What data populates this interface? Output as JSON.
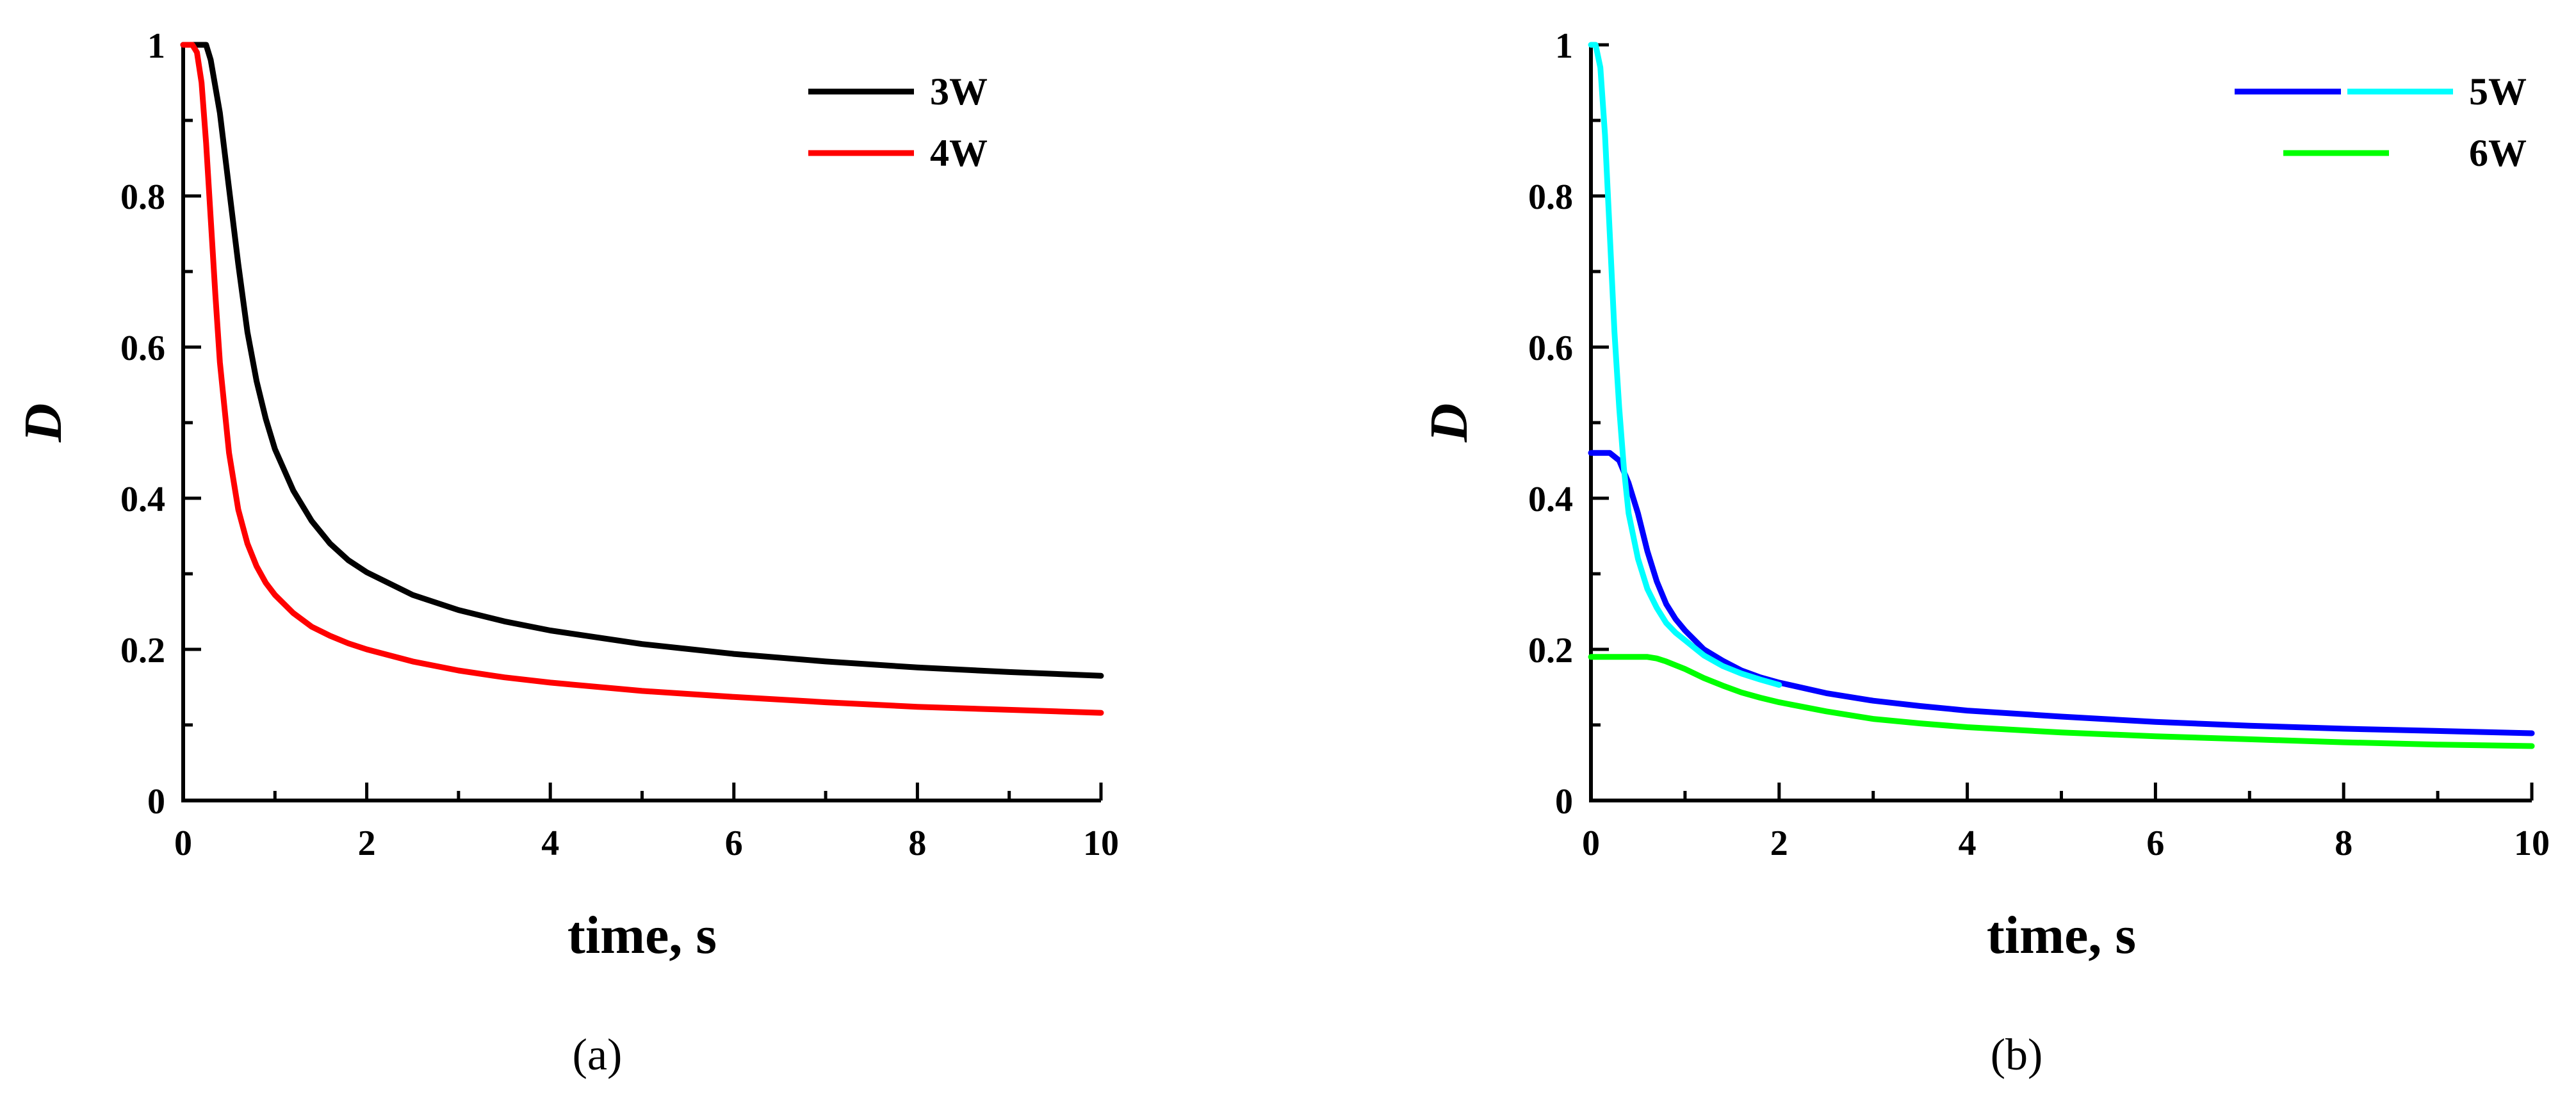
{
  "chart_data": [
    {
      "type": "line",
      "panel_label": "(a)",
      "xlabel": "time, s",
      "ylabel": "D",
      "xlim": [
        0,
        10
      ],
      "ylim": [
        0,
        1
      ],
      "x_ticks": [
        "0",
        "2",
        "4",
        "6",
        "8",
        "10"
      ],
      "y_ticks": [
        "0",
        "0.2",
        "0.4",
        "0.6",
        "0.8",
        "1"
      ],
      "grid": false,
      "legend_position": "top-right",
      "series": [
        {
          "name": "3W",
          "color": "#000000",
          "points": [
            [
              0,
              1
            ],
            [
              0.1,
              1
            ],
            [
              0.2,
              1
            ],
            [
              0.25,
              1
            ],
            [
              0.3,
              0.98
            ],
            [
              0.4,
              0.91
            ],
            [
              0.5,
              0.81
            ],
            [
              0.6,
              0.71
            ],
            [
              0.7,
              0.62
            ],
            [
              0.8,
              0.555
            ],
            [
              0.9,
              0.505
            ],
            [
              1.0,
              0.465
            ],
            [
              1.2,
              0.41
            ],
            [
              1.4,
              0.37
            ],
            [
              1.6,
              0.34
            ],
            [
              1.8,
              0.318
            ],
            [
              2.0,
              0.302
            ],
            [
              2.5,
              0.272
            ],
            [
              3.0,
              0.252
            ],
            [
              3.5,
              0.237
            ],
            [
              4.0,
              0.225
            ],
            [
              5.0,
              0.207
            ],
            [
              6.0,
              0.194
            ],
            [
              7.0,
              0.184
            ],
            [
              8.0,
              0.176
            ],
            [
              9.0,
              0.17
            ],
            [
              10.0,
              0.165
            ]
          ]
        },
        {
          "name": "4W",
          "color": "#ff0000",
          "points": [
            [
              0,
              1
            ],
            [
              0.1,
              1
            ],
            [
              0.15,
              0.99
            ],
            [
              0.2,
              0.95
            ],
            [
              0.25,
              0.87
            ],
            [
              0.3,
              0.77
            ],
            [
              0.35,
              0.67
            ],
            [
              0.4,
              0.58
            ],
            [
              0.5,
              0.46
            ],
            [
              0.6,
              0.385
            ],
            [
              0.7,
              0.34
            ],
            [
              0.8,
              0.31
            ],
            [
              0.9,
              0.288
            ],
            [
              1.0,
              0.272
            ],
            [
              1.2,
              0.248
            ],
            [
              1.4,
              0.23
            ],
            [
              1.6,
              0.218
            ],
            [
              1.8,
              0.208
            ],
            [
              2.0,
              0.2
            ],
            [
              2.5,
              0.184
            ],
            [
              3.0,
              0.172
            ],
            [
              3.5,
              0.163
            ],
            [
              4.0,
              0.156
            ],
            [
              5.0,
              0.145
            ],
            [
              6.0,
              0.137
            ],
            [
              7.0,
              0.13
            ],
            [
              8.0,
              0.124
            ],
            [
              9.0,
              0.12
            ],
            [
              10.0,
              0.116
            ]
          ]
        }
      ]
    },
    {
      "type": "line",
      "panel_label": "(b)",
      "xlabel": "time, s",
      "ylabel": "D",
      "xlim": [
        0,
        10
      ],
      "ylim": [
        0,
        1
      ],
      "x_ticks": [
        "0",
        "2",
        "4",
        "6",
        "8",
        "10"
      ],
      "y_ticks": [
        "0",
        "0.2",
        "0.4",
        "0.6",
        "0.8",
        "1"
      ],
      "grid": false,
      "legend_position": "top-right",
      "series": [
        {
          "name": "5W",
          "segments": [
            {
              "color": "#0000ff",
              "points": [
                [
                  0,
                  0.46
                ],
                [
                  0.1,
                  0.46
                ],
                [
                  0.2,
                  0.46
                ],
                [
                  0.3,
                  0.45
                ],
                [
                  0.4,
                  0.42
                ],
                [
                  0.5,
                  0.38
                ],
                [
                  0.6,
                  0.33
                ],
                [
                  0.7,
                  0.29
                ],
                [
                  0.8,
                  0.26
                ],
                [
                  0.9,
                  0.24
                ],
                [
                  1.0,
                  0.225
                ],
                [
                  1.2,
                  0.2
                ],
                [
                  1.4,
                  0.185
                ],
                [
                  1.6,
                  0.172
                ],
                [
                  1.8,
                  0.163
                ],
                [
                  2.0,
                  0.156
                ],
                [
                  2.5,
                  0.142
                ],
                [
                  3.0,
                  0.132
                ],
                [
                  3.5,
                  0.125
                ],
                [
                  4.0,
                  0.119
                ],
                [
                  5.0,
                  0.111
                ],
                [
                  6.0,
                  0.104
                ],
                [
                  7.0,
                  0.099
                ],
                [
                  8.0,
                  0.095
                ],
                [
                  9.0,
                  0.092
                ],
                [
                  10.0,
                  0.089
                ]
              ]
            },
            {
              "color": "#00ffff",
              "points": [
                [
                  0,
                  1
                ],
                [
                  0.05,
                  1
                ],
                [
                  0.1,
                  0.97
                ],
                [
                  0.15,
                  0.88
                ],
                [
                  0.2,
                  0.75
                ],
                [
                  0.25,
                  0.62
                ],
                [
                  0.3,
                  0.52
                ],
                [
                  0.35,
                  0.44
                ],
                [
                  0.4,
                  0.38
                ],
                [
                  0.5,
                  0.32
                ],
                [
                  0.6,
                  0.28
                ],
                [
                  0.7,
                  0.255
                ],
                [
                  0.8,
                  0.235
                ],
                [
                  0.9,
                  0.222
                ],
                [
                  1.0,
                  0.212
                ],
                [
                  1.2,
                  0.192
                ],
                [
                  1.4,
                  0.178
                ],
                [
                  1.6,
                  0.168
                ],
                [
                  1.8,
                  0.16
                ],
                [
                  2.0,
                  0.153
                ]
              ]
            }
          ]
        },
        {
          "name": "6W",
          "color": "#00ff00",
          "points": [
            [
              0,
              0.19
            ],
            [
              0.2,
              0.19
            ],
            [
              0.4,
              0.19
            ],
            [
              0.6,
              0.19
            ],
            [
              0.7,
              0.188
            ],
            [
              0.8,
              0.184
            ],
            [
              1.0,
              0.174
            ],
            [
              1.2,
              0.162
            ],
            [
              1.4,
              0.152
            ],
            [
              1.6,
              0.143
            ],
            [
              1.8,
              0.136
            ],
            [
              2.0,
              0.13
            ],
            [
              2.5,
              0.118
            ],
            [
              3.0,
              0.108
            ],
            [
              3.5,
              0.102
            ],
            [
              4.0,
              0.097
            ],
            [
              5.0,
              0.09
            ],
            [
              6.0,
              0.085
            ],
            [
              7.0,
              0.081
            ],
            [
              8.0,
              0.077
            ],
            [
              9.0,
              0.074
            ],
            [
              10.0,
              0.072
            ]
          ]
        }
      ]
    }
  ]
}
